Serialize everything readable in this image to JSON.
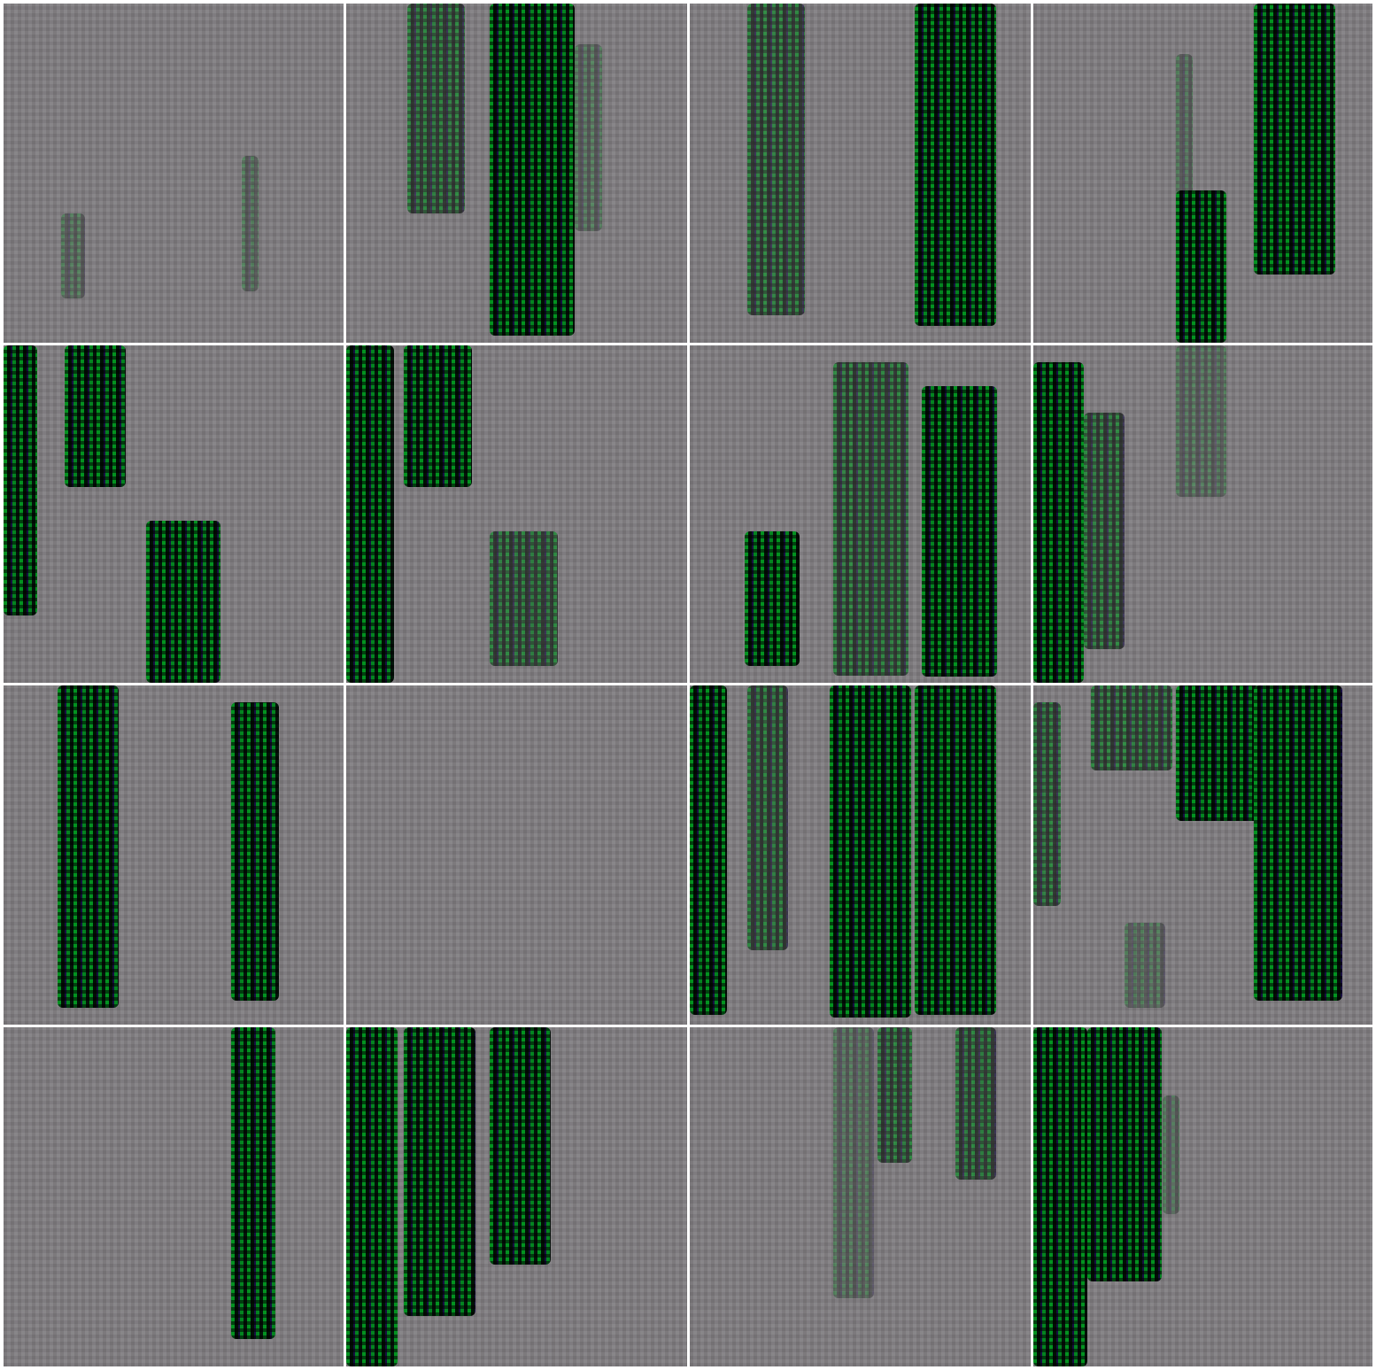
{
  "colors": {
    "background": "#ffffff",
    "tile_base": "#7f7c80",
    "accent_green": "#18f06a",
    "accent_magenta": "#d018d8"
  },
  "tiles": [
    {
      "name": "tile-r1-c1",
      "intensity": "faint"
    },
    {
      "name": "tile-r1-c2",
      "intensity": "strong"
    },
    {
      "name": "tile-r1-c3",
      "intensity": "strong"
    },
    {
      "name": "tile-r1-c4",
      "intensity": "strong"
    },
    {
      "name": "tile-r2-c1",
      "intensity": "strong"
    },
    {
      "name": "tile-r2-c2",
      "intensity": "strong"
    },
    {
      "name": "tile-r2-c3",
      "intensity": "strong"
    },
    {
      "name": "tile-r2-c4",
      "intensity": "strong"
    },
    {
      "name": "tile-r3-c1",
      "intensity": "strong"
    },
    {
      "name": "tile-r3-c2",
      "intensity": "blank"
    },
    {
      "name": "tile-r3-c3",
      "intensity": "strong"
    },
    {
      "name": "tile-r3-c4",
      "intensity": "strong"
    },
    {
      "name": "tile-r4-c1",
      "intensity": "medium"
    },
    {
      "name": "tile-r4-c2",
      "intensity": "strong"
    },
    {
      "name": "tile-r4-c3",
      "intensity": "medium"
    },
    {
      "name": "tile-r4-c4",
      "intensity": "strong"
    }
  ]
}
